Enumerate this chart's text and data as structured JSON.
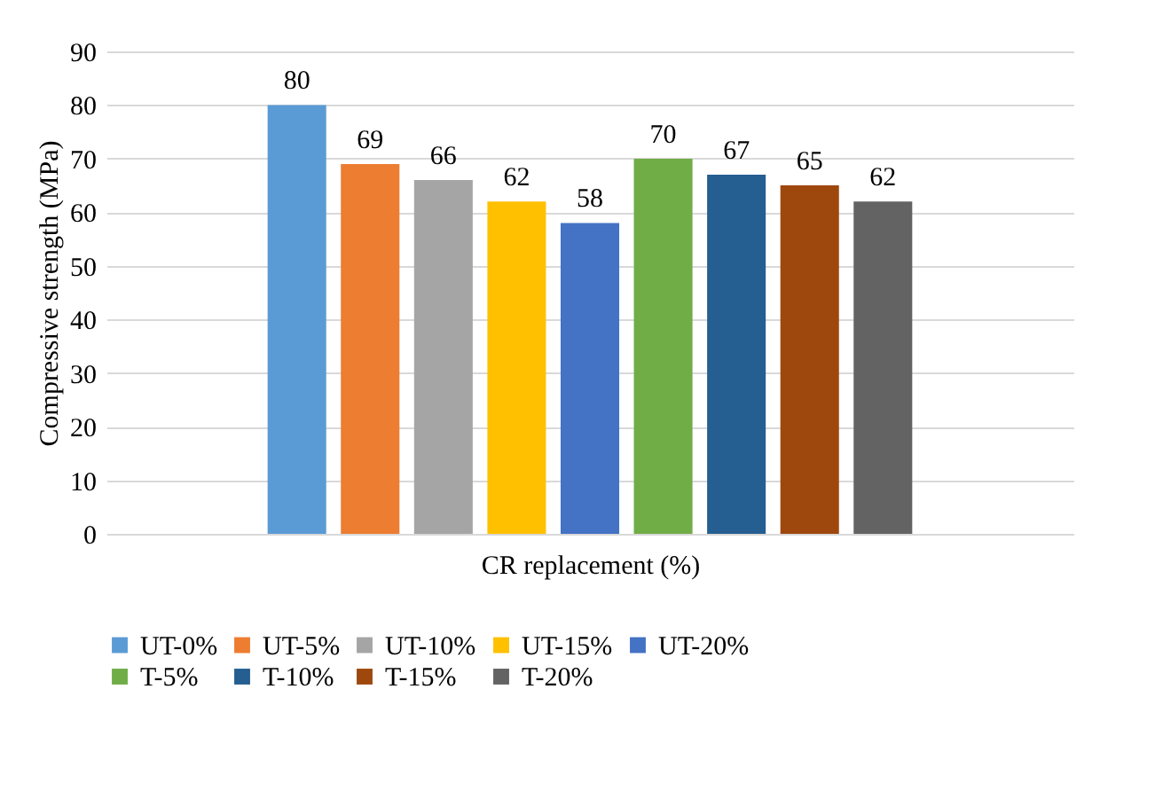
{
  "chart_data": {
    "type": "bar",
    "xlabel": "CR replacement (%)",
    "ylabel": "Compressive strength (MPa)",
    "categories": [
      null
    ],
    "series": [
      {
        "name": "UT-0%",
        "color": "#5b9bd5",
        "values": [
          80
        ]
      },
      {
        "name": "UT-5%",
        "color": "#ed7d31",
        "values": [
          69
        ]
      },
      {
        "name": "UT-10%",
        "color": "#a5a5a5",
        "values": [
          66
        ]
      },
      {
        "name": "UT-15%",
        "color": "#ffc000",
        "values": [
          62
        ]
      },
      {
        "name": "UT-20%",
        "color": "#4472c4",
        "values": [
          58
        ]
      },
      {
        "name": "T-5%",
        "color": "#70ad47",
        "values": [
          70
        ]
      },
      {
        "name": "T-10%",
        "color": "#255e91",
        "values": [
          67
        ]
      },
      {
        "name": "T-15%",
        "color": "#9e480e",
        "values": [
          65
        ]
      },
      {
        "name": "T-20%",
        "color": "#636363",
        "values": [
          62
        ]
      }
    ],
    "ylim": [
      0,
      90
    ],
    "yticks": [
      0,
      10,
      20,
      30,
      40,
      50,
      60,
      70,
      80,
      90
    ],
    "grid": "y",
    "legend": "bottom",
    "data_labels": true
  }
}
